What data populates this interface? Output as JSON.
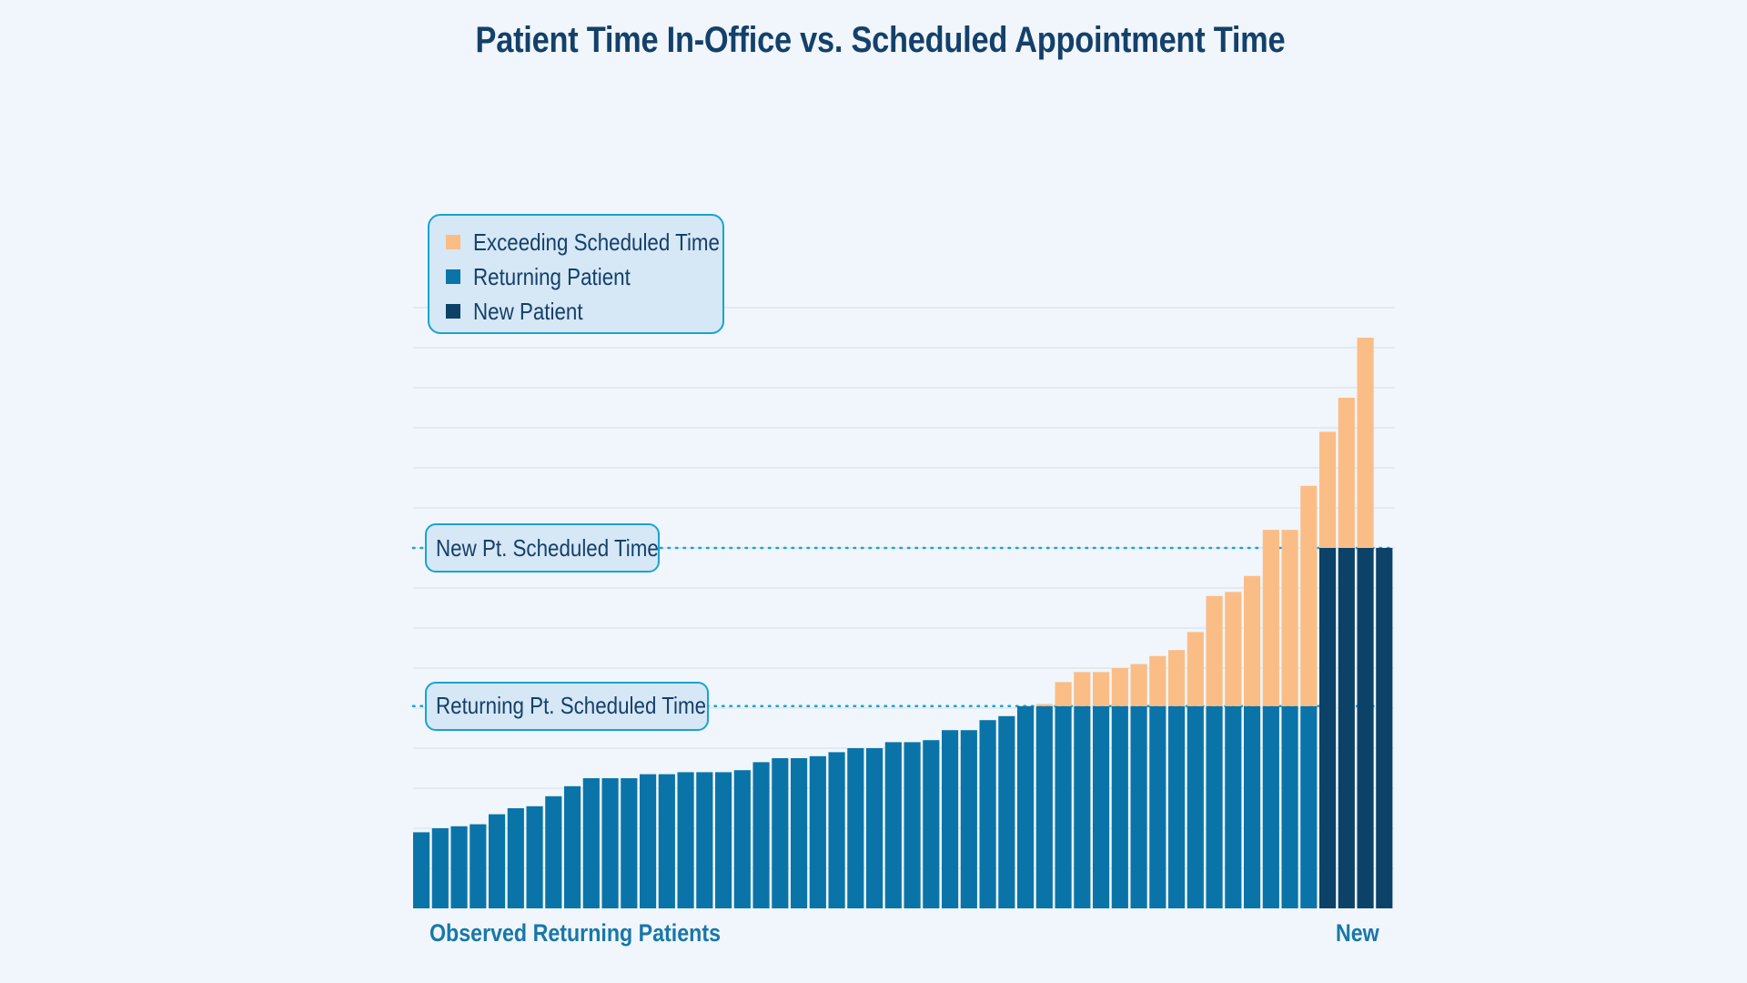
{
  "colors": {
    "background": "#f0f6fb",
    "title": "#14406a",
    "exceeding": "#fbbd86",
    "returning": "#0a74a8",
    "new": "#0c4268",
    "grid": "#d3dee8",
    "reference_line": "#1aa3cf",
    "label_box_fill": "#d6e7f5",
    "label_box_border": "#1aa3cf",
    "x_label": "#1877a8"
  },
  "chart_data": {
    "type": "bar",
    "stacked": true,
    "title": "Patient Time In-Office vs. Scheduled Appointment Time",
    "xlabel": "",
    "ylabel": "",
    "ylim": [
      0,
      15
    ],
    "grid": true,
    "legend_position": "top-left",
    "legend": [
      {
        "label": "Exceeding Scheduled Time",
        "color": "#fbbd86"
      },
      {
        "label": "Returning Patient",
        "color": "#0a74a8"
      },
      {
        "label": "New Patient",
        "color": "#0c4268"
      }
    ],
    "reference_lines": [
      {
        "label": "New Pt. Scheduled Time",
        "value": 9.0
      },
      {
        "label": "Returning Pt. Scheduled Time",
        "value": 5.05
      }
    ],
    "group_labels": [
      {
        "label": "Observed Returning Patients",
        "group": "returning"
      },
      {
        "label": "New",
        "group": "new"
      }
    ],
    "series": [
      {
        "name": "Returning Patient",
        "values": [
          1.9,
          2.0,
          2.05,
          2.1,
          2.35,
          2.5,
          2.55,
          2.8,
          3.05,
          3.25,
          3.25,
          3.25,
          3.35,
          3.35,
          3.4,
          3.4,
          3.4,
          3.45,
          3.65,
          3.75,
          3.75,
          3.8,
          3.9,
          4.0,
          4.0,
          4.15,
          4.15,
          4.2,
          4.45,
          4.45,
          4.7,
          4.8,
          5.05,
          5.05,
          5.05,
          5.05,
          5.05,
          5.05,
          5.05,
          5.05,
          5.05,
          5.05,
          5.05,
          5.05,
          5.05,
          5.05,
          5.05,
          5.05,
          0,
          0,
          0,
          0
        ]
      },
      {
        "name": "New Patient",
        "values": [
          0,
          0,
          0,
          0,
          0,
          0,
          0,
          0,
          0,
          0,
          0,
          0,
          0,
          0,
          0,
          0,
          0,
          0,
          0,
          0,
          0,
          0,
          0,
          0,
          0,
          0,
          0,
          0,
          0,
          0,
          0,
          0,
          0,
          0,
          0,
          0,
          0,
          0,
          0,
          0,
          0,
          0,
          0,
          0,
          0,
          0,
          0,
          0,
          9.0,
          9.0,
          9.0,
          9.0
        ]
      },
      {
        "name": "Exceeding Scheduled Time",
        "values": [
          0,
          0,
          0,
          0,
          0,
          0,
          0,
          0,
          0,
          0,
          0,
          0,
          0,
          0,
          0,
          0,
          0,
          0,
          0,
          0,
          0,
          0,
          0,
          0,
          0,
          0,
          0,
          0,
          0,
          0,
          0,
          0,
          0,
          0.05,
          0.6,
          0.85,
          0.85,
          0.95,
          1.05,
          1.25,
          1.4,
          1.85,
          2.75,
          2.85,
          3.25,
          4.4,
          4.4,
          5.5,
          2.9,
          3.75,
          5.25,
          0
        ]
      }
    ]
  }
}
